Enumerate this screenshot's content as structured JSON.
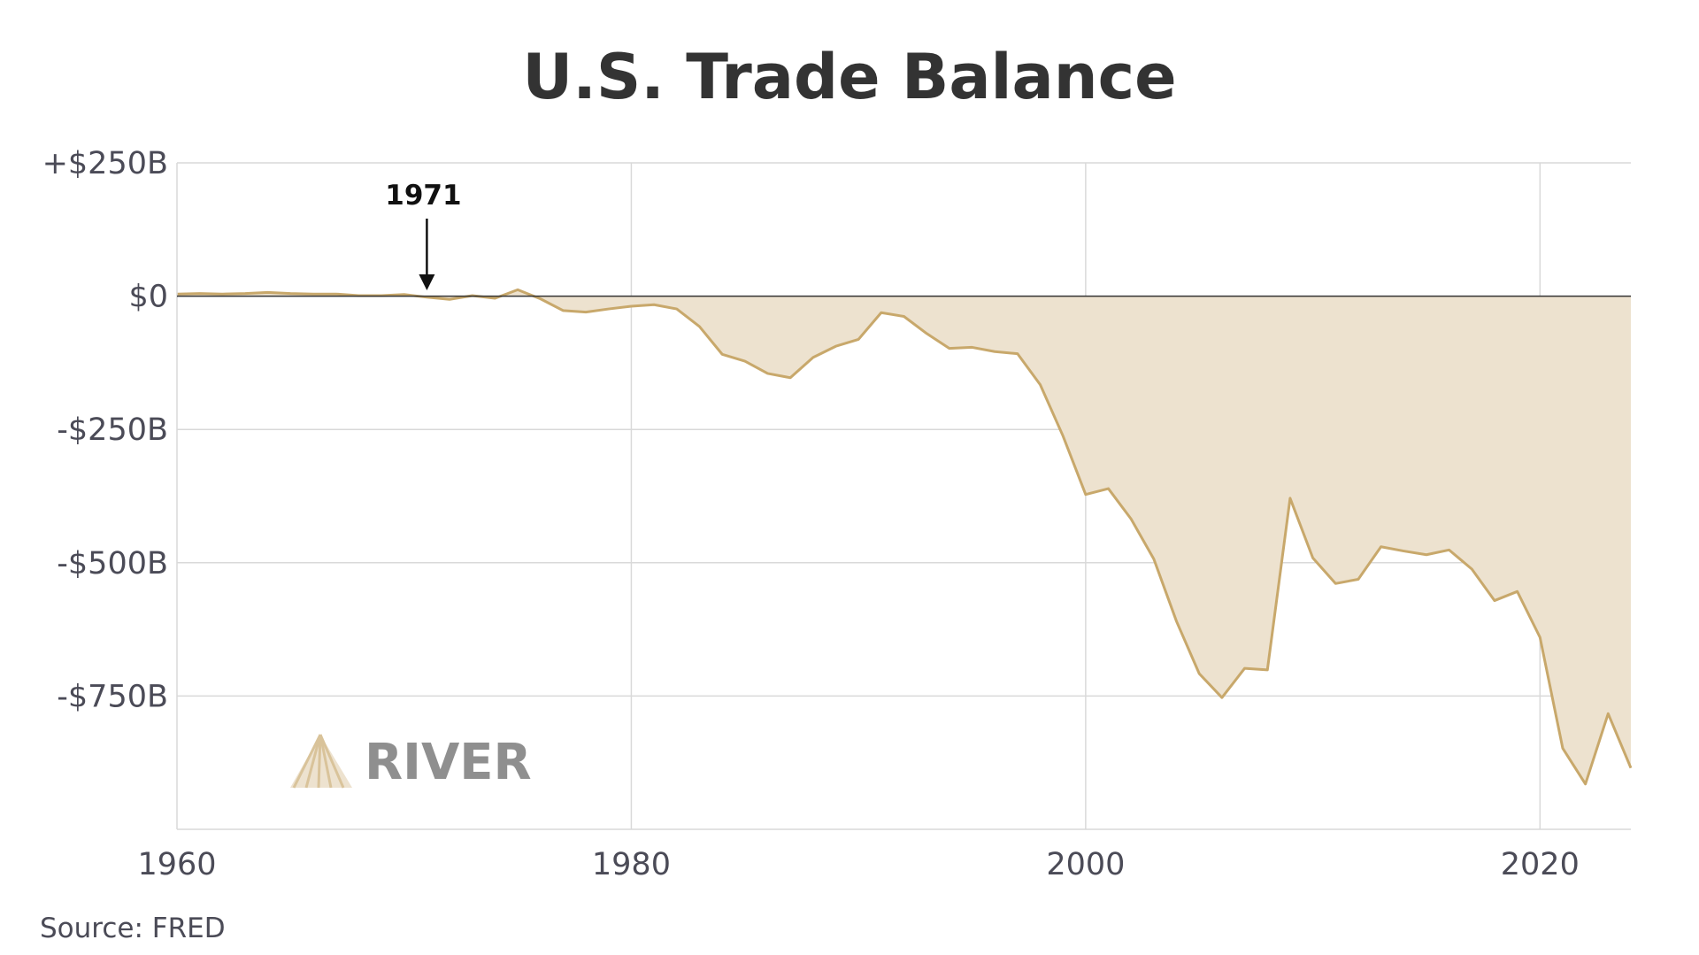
{
  "source": "Source: FRED",
  "logo": {
    "text": "RIVER",
    "icon": "river-mountain-icon"
  },
  "colors": {
    "line": "#c8a86b",
    "fill": "#ede2cf",
    "grid": "#d9d9d9",
    "zero": "#333333",
    "text": "#4b4b57"
  },
  "chart_data": {
    "type": "area",
    "title": "U.S. Trade Balance",
    "xlabel": "",
    "ylabel": "",
    "xlim": [
      1960,
      2024
    ],
    "ylim": [
      -1000,
      250
    ],
    "grid": true,
    "x_ticks": [
      {
        "value": 1960,
        "label": "1960"
      },
      {
        "value": 1980,
        "label": "1980"
      },
      {
        "value": 2000,
        "label": "2000"
      },
      {
        "value": 2020,
        "label": "2020"
      }
    ],
    "y_ticks": [
      {
        "value": 250,
        "label": "+$250B"
      },
      {
        "value": 0,
        "label": "$0"
      },
      {
        "value": -250,
        "label": "-$250B"
      },
      {
        "value": -500,
        "label": "-$500B"
      },
      {
        "value": -750,
        "label": "-$750B"
      }
    ],
    "annotations": [
      {
        "label": "1971",
        "x": 1971,
        "y": 0
      }
    ],
    "series": [
      {
        "x": [
          1960,
          1961,
          1962,
          1963,
          1964,
          1965,
          1966,
          1967,
          1968,
          1969,
          1970,
          1971,
          1972,
          1973,
          1974,
          1975,
          1976,
          1977,
          1978,
          1979,
          1980,
          1981,
          1982,
          1983,
          1984,
          1985,
          1986,
          1987,
          1988,
          1989,
          1990,
          1991,
          1992,
          1993,
          1994,
          1995,
          1996,
          1997,
          1998,
          1999,
          2000,
          2001,
          2002,
          2003,
          2004,
          2005,
          2006,
          2007,
          2008,
          2009,
          2010,
          2011,
          2012,
          2013,
          2014,
          2015,
          2016,
          2017,
          2018,
          2019,
          2020,
          2021,
          2022,
          2023,
          2024
        ],
        "values": [
          4,
          5,
          4,
          5,
          7,
          5,
          4,
          4,
          1,
          1,
          3,
          -2,
          -6,
          1,
          -4,
          12,
          -5,
          -27,
          -30,
          -24,
          -19,
          -16,
          -24,
          -57,
          -109,
          -122,
          -145,
          -153,
          -115,
          -94,
          -81,
          -31,
          -38,
          -70,
          -98,
          -96,
          -104,
          -108,
          -166,
          -262,
          -372,
          -361,
          -418,
          -493,
          -610,
          -708,
          -753,
          -698,
          -701,
          -379,
          -491,
          -539,
          -531,
          -470,
          -478,
          -485,
          -476,
          -512,
          -571,
          -554,
          -640,
          -848,
          -915,
          -783,
          -885
        ]
      }
    ]
  }
}
